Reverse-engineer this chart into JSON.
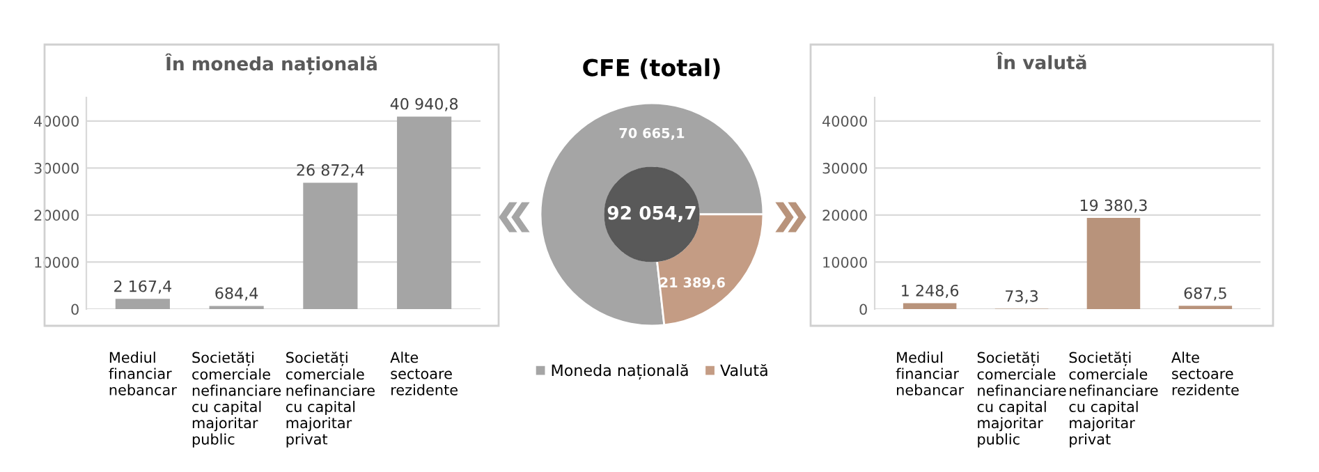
{
  "chart_data": [
    {
      "type": "bar",
      "title": "În moneda națională",
      "categories": [
        "Mediul financiar nebancar",
        "Societăți comerciale nefinanciare cu capital majoritar public",
        "Societăți comerciale nefinanciare cu capital majoritar privat",
        "Alte sectoare rezidente"
      ],
      "values": [
        2167.4,
        684.4,
        26872.4,
        40940.8
      ],
      "value_labels": [
        "2 167,4",
        "684,4",
        "26 872,4",
        "40 940,8"
      ],
      "color": "#a5a5a5",
      "ylim": [
        0,
        45000
      ],
      "yticks": [
        0,
        10000,
        20000,
        30000,
        40000
      ],
      "grid": "y"
    },
    {
      "type": "donut",
      "title": "CFE (total)",
      "categories": [
        "Moneda națională",
        "Valută"
      ],
      "values": [
        70665.1,
        21389.6
      ],
      "value_labels": [
        "70 665,1",
        "21 389,6"
      ],
      "colors": [
        "#a5a5a5",
        "#c49c84"
      ],
      "annotations": [
        "92 054,7"
      ],
      "legend": "bottom"
    },
    {
      "type": "bar",
      "title": "În valută",
      "categories": [
        "Mediul financiar nebancar",
        "Societăți comerciale nefinanciare cu capital majoritar public",
        "Societăți comerciale nefinanciare cu capital majoritar privat",
        "Alte sectoare rezidente"
      ],
      "values": [
        1248.6,
        73.3,
        19380.3,
        687.5
      ],
      "value_labels": [
        "1 248,6",
        "73,3",
        "19 380,3",
        "687,5"
      ],
      "color": "#b8937b",
      "ylim": [
        0,
        45000
      ],
      "yticks": [
        0,
        10000,
        20000,
        30000,
        40000
      ],
      "grid": "y"
    }
  ]
}
